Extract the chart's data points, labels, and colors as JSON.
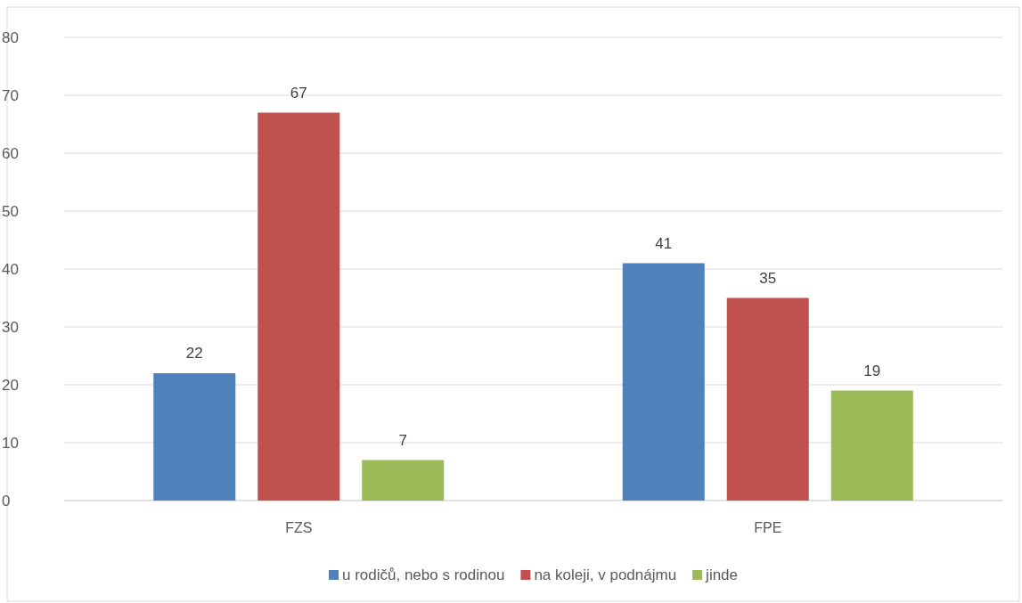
{
  "chart_data": {
    "type": "bar",
    "categories": [
      "FZS",
      "FPE"
    ],
    "series": [
      {
        "name": "u rodičů, nebo s rodinou",
        "color": "#4f81bd",
        "values": [
          22,
          41
        ]
      },
      {
        "name": "na koleji, v podnájmu",
        "color": "#c0504d",
        "values": [
          67,
          35
        ]
      },
      {
        "name": "jinde",
        "color": "#9bbb59",
        "values": [
          7,
          19
        ]
      }
    ],
    "ylim": [
      0,
      80
    ],
    "yticks": [
      0,
      10,
      20,
      30,
      40,
      50,
      60,
      70,
      80
    ],
    "grid": "y",
    "legend": "bottom",
    "data_labels": true
  }
}
